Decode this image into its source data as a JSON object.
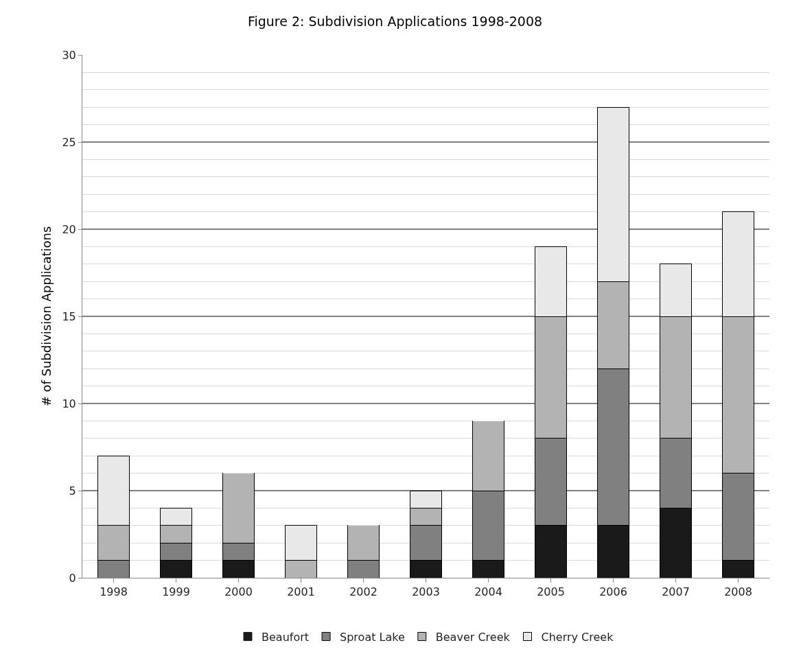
{
  "chart_data": {
    "type": "bar",
    "title": "Figure 2: Subdivision Applications 1998-2008",
    "ylabel": "# of Subdivision Applications",
    "categories": [
      "1998",
      "1999",
      "2000",
      "2001",
      "2002",
      "2003",
      "2004",
      "2005",
      "2006",
      "2007",
      "2008"
    ],
    "stacked": true,
    "ylim": [
      0,
      30
    ],
    "yticks": [
      0,
      5,
      10,
      15,
      20,
      25,
      30
    ],
    "grid": "y",
    "legend": "bottom",
    "series": [
      {
        "name": "Beaufort",
        "color": "#1a1a1a",
        "values": [
          0,
          1,
          1,
          0,
          0,
          1,
          1,
          3,
          3,
          4,
          1
        ]
      },
      {
        "name": "Sproat Lake",
        "color": "#808080",
        "values": [
          1,
          1,
          1,
          0,
          1,
          2,
          4,
          5,
          9,
          4,
          5
        ]
      },
      {
        "name": "Beaver Creek",
        "color": "#b3b3b3",
        "values": [
          2,
          1,
          4,
          1,
          2,
          1,
          4,
          7,
          5,
          7,
          9
        ]
      },
      {
        "name": "Cherry Creek",
        "color": "#e8e8e8",
        "values": [
          4,
          1,
          0,
          2,
          0,
          1,
          0,
          4,
          10,
          3,
          6
        ]
      }
    ]
  }
}
